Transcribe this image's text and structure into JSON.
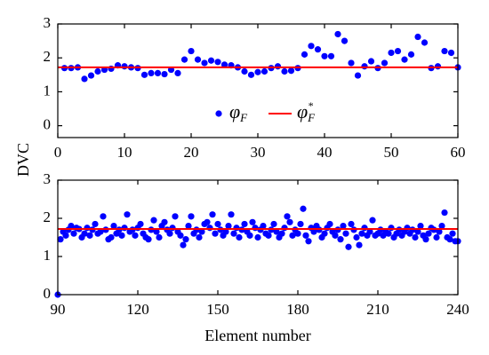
{
  "chart_data": [
    {
      "type": "scatter",
      "y_label": "DVC",
      "xlim": [
        0,
        60
      ],
      "ylim": [
        -0.35,
        3
      ],
      "xticks": [
        0,
        10,
        20,
        30,
        40,
        50,
        60
      ],
      "yticks": [
        0,
        1,
        2,
        3
      ],
      "series": [
        {
          "name": "φF",
          "kind": "scatter",
          "color": "#0000ff",
          "x": [
            1,
            2,
            3,
            4,
            5,
            6,
            7,
            8,
            9,
            10,
            11,
            12,
            13,
            14,
            15,
            16,
            17,
            18,
            19,
            20,
            21,
            22,
            23,
            24,
            25,
            26,
            27,
            28,
            29,
            30,
            31,
            32,
            33,
            34,
            35,
            36,
            37,
            38,
            39,
            40,
            41,
            42,
            43,
            44,
            45,
            46,
            47,
            48,
            49,
            50,
            51,
            52,
            53,
            54,
            55,
            56,
            57,
            58,
            59,
            60
          ],
          "values": [
            1.7,
            1.7,
            1.72,
            1.38,
            1.48,
            1.6,
            1.65,
            1.68,
            1.78,
            1.75,
            1.72,
            1.7,
            1.5,
            1.55,
            1.55,
            1.52,
            1.65,
            1.55,
            1.95,
            2.2,
            1.95,
            1.85,
            1.92,
            1.88,
            1.8,
            1.78,
            1.72,
            1.6,
            1.5,
            1.58,
            1.6,
            1.7,
            1.75,
            1.6,
            1.62,
            1.7,
            2.1,
            2.35,
            2.25,
            2.05,
            2.05,
            2.7,
            2.5,
            1.85,
            1.48,
            1.75,
            1.9,
            1.7,
            1.85,
            2.15,
            2.2,
            1.95,
            2.1,
            2.62,
            2.45,
            1.7,
            1.75,
            2.2,
            2.15,
            1.72
          ]
        },
        {
          "name": "φ*F",
          "kind": "line",
          "color": "#ff0000",
          "x": [
            0,
            60
          ],
          "values": [
            1.72,
            1.72
          ]
        }
      ]
    },
    {
      "type": "scatter",
      "x_label": "Element number",
      "xlim": [
        90,
        240
      ],
      "ylim": [
        0,
        3
      ],
      "xticks": [
        90,
        120,
        150,
        180,
        210,
        240
      ],
      "yticks": [
        0,
        1,
        2,
        3
      ],
      "series": [
        {
          "kind": "scatter",
          "color": "#0000ff",
          "x": [
            90,
            91,
            92,
            93,
            94,
            95,
            96,
            97,
            98,
            99,
            100,
            101,
            102,
            103,
            104,
            105,
            106,
            107,
            108,
            109,
            110,
            111,
            112,
            113,
            114,
            115,
            116,
            117,
            118,
            119,
            120,
            121,
            122,
            123,
            124,
            125,
            126,
            127,
            128,
            129,
            130,
            131,
            132,
            133,
            134,
            135,
            136,
            137,
            138,
            139,
            140,
            141,
            142,
            143,
            144,
            145,
            146,
            147,
            148,
            149,
            150,
            151,
            152,
            153,
            154,
            155,
            156,
            157,
            158,
            159,
            160,
            161,
            162,
            163,
            164,
            165,
            166,
            167,
            168,
            169,
            170,
            171,
            172,
            173,
            174,
            175,
            176,
            177,
            178,
            179,
            180,
            181,
            182,
            183,
            184,
            185,
            186,
            187,
            188,
            189,
            190,
            191,
            192,
            193,
            194,
            195,
            196,
            197,
            198,
            199,
            200,
            201,
            202,
            203,
            204,
            205,
            206,
            207,
            208,
            209,
            210,
            211,
            212,
            213,
            214,
            215,
            216,
            217,
            218,
            219,
            220,
            221,
            222,
            223,
            224,
            225,
            226,
            227,
            228,
            229,
            230,
            231,
            232,
            233,
            234,
            235,
            236,
            237,
            238,
            239,
            240
          ],
          "values": [
            0,
            1.45,
            1.65,
            1.55,
            1.7,
            1.8,
            1.6,
            1.75,
            1.72,
            1.5,
            1.6,
            1.75,
            1.55,
            1.7,
            1.85,
            1.6,
            1.65,
            2.05,
            1.7,
            1.45,
            1.5,
            1.8,
            1.6,
            1.7,
            1.55,
            1.75,
            2.1,
            1.65,
            1.7,
            1.55,
            1.75,
            1.85,
            1.6,
            1.5,
            1.45,
            1.7,
            1.95,
            1.65,
            1.5,
            1.8,
            1.9,
            1.7,
            1.6,
            1.75,
            2.05,
            1.65,
            1.55,
            1.3,
            1.45,
            1.8,
            2.05,
            1.6,
            1.7,
            1.5,
            1.65,
            1.85,
            1.9,
            1.75,
            2.1,
            1.6,
            1.85,
            1.7,
            1.55,
            1.65,
            1.8,
            2.1,
            1.6,
            1.75,
            1.5,
            1.7,
            1.85,
            1.65,
            1.55,
            1.9,
            1.75,
            1.5,
            1.7,
            1.8,
            1.6,
            1.55,
            1.7,
            1.85,
            1.65,
            1.5,
            1.6,
            1.75,
            2.05,
            1.9,
            1.55,
            1.7,
            1.6,
            1.85,
            2.25,
            1.55,
            1.4,
            1.75,
            1.65,
            1.8,
            1.7,
            1.5,
            1.6,
            1.75,
            1.85,
            1.65,
            1.55,
            1.7,
            1.45,
            1.8,
            1.6,
            1.25,
            1.85,
            1.7,
            1.5,
            1.3,
            1.6,
            1.75,
            1.55,
            1.65,
            1.95,
            1.55,
            1.6,
            1.7,
            1.55,
            1.65,
            1.6,
            1.75,
            1.5,
            1.6,
            1.7,
            1.55,
            1.65,
            1.75,
            1.6,
            1.7,
            1.5,
            1.65,
            1.8,
            1.55,
            1.45,
            1.6,
            1.75,
            1.7,
            1.5,
            1.65,
            1.8,
            2.15,
            1.5,
            1.45,
            1.6,
            1.4,
            1.4
          ]
        },
        {
          "kind": "line",
          "color": "#ff0000",
          "x": [
            90,
            240
          ],
          "values": [
            1.72,
            1.72
          ]
        }
      ]
    }
  ]
}
